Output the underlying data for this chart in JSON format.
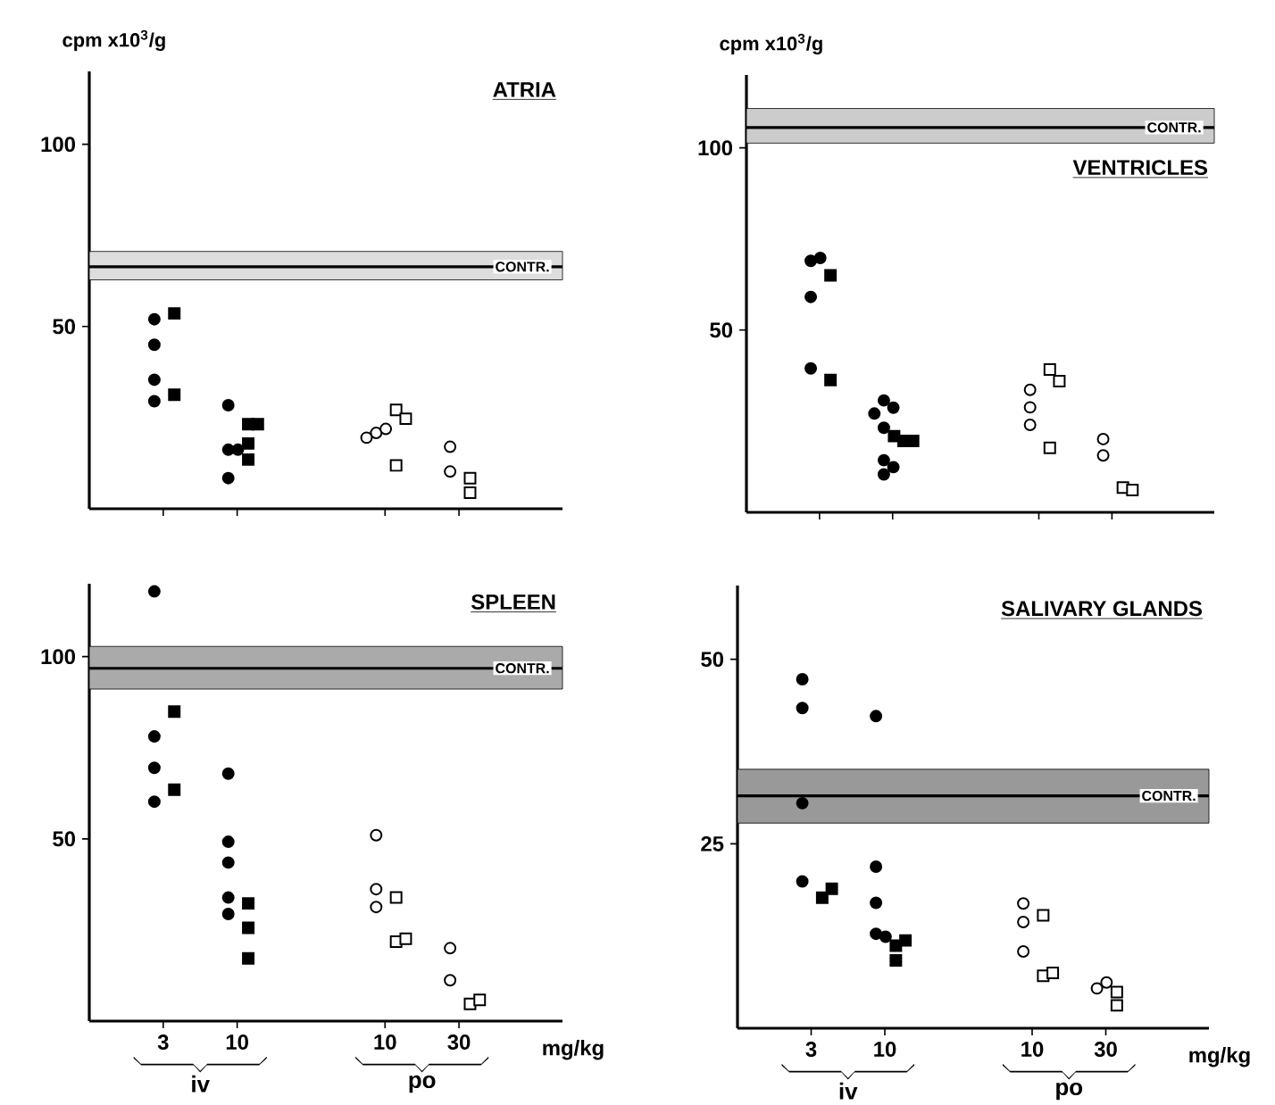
{
  "chart_data": [
    {
      "type": "scatter",
      "title": "ATRIA",
      "ylabel": "cpm x10$^{3}$/g",
      "categories": [
        "3",
        "10",
        null,
        "10",
        "30"
      ],
      "ylim": [
        0,
        120
      ],
      "yticks": [
        50,
        100
      ],
      "tick_labels": "y",
      "bands": [
        {
          "axis": "y",
          "from": 62.8,
          "to": 70.6,
          "color": "#dddddd"
        }
      ],
      "ref_lines": [
        {
          "axis": "y",
          "value": 66.4,
          "label": "CONTR."
        }
      ],
      "series": [
        {
          "marker": "circle",
          "color": "#000000",
          "values": [
            52,
            28.4,
            null,
            null,
            null
          ]
        },
        {
          "marker": "circle",
          "color": "#000000",
          "values": [
            45,
            16.2,
            null,
            null,
            null
          ]
        },
        {
          "marker": "circle",
          "color": "#000000",
          "values": [
            35.4,
            16.2,
            null,
            null,
            null
          ]
        },
        {
          "marker": "circle",
          "color": "#000000",
          "values": [
            29.5,
            8.4,
            null,
            null,
            null
          ]
        },
        {
          "marker": "square",
          "color": "#000000",
          "values": [
            53.6,
            23.2,
            null,
            null,
            null
          ]
        },
        {
          "marker": "square",
          "color": "#000000",
          "values": [
            31.3,
            23.2,
            null,
            null,
            null
          ]
        },
        {
          "marker": "square",
          "color": "#000000",
          "values": [
            null,
            17.9,
            null,
            null,
            null
          ]
        },
        {
          "marker": "square",
          "color": "#000000",
          "values": [
            null,
            13.5,
            null,
            null,
            null
          ]
        },
        {
          "marker": "circle",
          "color": "#ffffff",
          "values": [
            null,
            null,
            null,
            20.8,
            17.0
          ]
        },
        {
          "marker": "circle",
          "color": "#ffffff",
          "values": [
            null,
            null,
            null,
            21.9,
            10.2
          ]
        },
        {
          "marker": "circle",
          "color": "#ffffff",
          "values": [
            null,
            null,
            null,
            19.5,
            null
          ]
        },
        {
          "marker": "square",
          "color": "#ffffff",
          "values": [
            null,
            null,
            null,
            27.1,
            8.4
          ]
        },
        {
          "marker": "square",
          "color": "#ffffff",
          "values": [
            null,
            null,
            null,
            24.7,
            4.4
          ]
        },
        {
          "marker": "square",
          "color": "#ffffff",
          "values": [
            null,
            null,
            null,
            11.9,
            null
          ]
        }
      ]
    },
    {
      "type": "scatter",
      "title": "VENTRICLES",
      "ylabel": "cpm x10$^{3}$/g",
      "categories": [
        "3",
        "10",
        null,
        "10",
        "30"
      ],
      "ylim": [
        0,
        120
      ],
      "yticks": [
        50,
        100
      ],
      "tick_labels": "y",
      "bands": [
        {
          "axis": "y",
          "from": 101.3,
          "to": 110.8,
          "color": "#cccccc"
        }
      ],
      "ref_lines": [
        {
          "axis": "y",
          "value": 105.6,
          "label": "CONTR."
        }
      ],
      "series": [
        {
          "marker": "circle",
          "color": "#000000",
          "values": [
            69,
            30.7,
            null,
            null,
            null
          ]
        },
        {
          "marker": "circle",
          "color": "#000000",
          "values": [
            69.8,
            28.7,
            null,
            null,
            null
          ]
        },
        {
          "marker": "circle",
          "color": "#000000",
          "values": [
            59.1,
            27.1,
            null,
            null,
            null
          ]
        },
        {
          "marker": "circle",
          "color": "#000000",
          "values": [
            39.5,
            23.2,
            null,
            null,
            null
          ]
        },
        {
          "marker": "circle",
          "color": "#000000",
          "values": [
            null,
            14.3,
            null,
            null,
            null
          ]
        },
        {
          "marker": "circle",
          "color": "#000000",
          "values": [
            null,
            12.4,
            null,
            null,
            null
          ]
        },
        {
          "marker": "circle",
          "color": "#000000",
          "values": [
            null,
            10.4,
            null,
            null,
            null
          ]
        },
        {
          "marker": "square",
          "color": "#000000",
          "values": [
            65,
            19.6,
            null,
            null,
            null
          ]
        },
        {
          "marker": "square",
          "color": "#000000",
          "values": [
            36.3,
            19.6,
            null,
            null,
            null
          ]
        },
        {
          "marker": "square",
          "color": "#000000",
          "values": [
            null,
            20.9,
            null,
            null,
            null
          ]
        },
        {
          "marker": "circle",
          "color": "#ffffff",
          "values": [
            null,
            null,
            null,
            33.6,
            20.1
          ]
        },
        {
          "marker": "circle",
          "color": "#ffffff",
          "values": [
            null,
            null,
            null,
            28.8,
            15.6
          ]
        },
        {
          "marker": "circle",
          "color": "#ffffff",
          "values": [
            null,
            null,
            null,
            24.0,
            null
          ]
        },
        {
          "marker": "square",
          "color": "#ffffff",
          "values": [
            null,
            null,
            null,
            39.2,
            6.8
          ]
        },
        {
          "marker": "square",
          "color": "#ffffff",
          "values": [
            null,
            null,
            null,
            36.0,
            6.1
          ]
        },
        {
          "marker": "square",
          "color": "#ffffff",
          "values": [
            null,
            null,
            null,
            17.7,
            null
          ]
        }
      ]
    },
    {
      "type": "scatter",
      "title": "SPLEEN",
      "xlabel": "mg/kg",
      "annotations": [
        "iv",
        "po"
      ],
      "categories": [
        "3",
        "10",
        null,
        "10",
        "30"
      ],
      "ylim": [
        0,
        120
      ],
      "yticks": [
        50,
        100
      ],
      "bands": [
        {
          "axis": "y",
          "from": 91.1,
          "to": 102.8,
          "color": "#aaaaaa"
        }
      ],
      "ref_lines": [
        {
          "axis": "y",
          "value": 96.8,
          "label": "CONTR."
        }
      ],
      "series": [
        {
          "marker": "circle",
          "color": "#000000",
          "values": [
            117.9,
            67.9,
            null,
            null,
            null
          ]
        },
        {
          "marker": "circle",
          "color": "#000000",
          "values": [
            78.1,
            49.2,
            null,
            null,
            null
          ]
        },
        {
          "marker": "circle",
          "color": "#000000",
          "values": [
            69.5,
            43.5,
            null,
            null,
            null
          ]
        },
        {
          "marker": "circle",
          "color": "#000000",
          "values": [
            60.2,
            33.9,
            null,
            null,
            null
          ]
        },
        {
          "marker": "circle",
          "color": "#000000",
          "values": [
            null,
            29.4,
            null,
            null,
            null
          ]
        },
        {
          "marker": "square",
          "color": "#000000",
          "values": [
            84.9,
            32.3,
            null,
            null,
            null
          ]
        },
        {
          "marker": "square",
          "color": "#000000",
          "values": [
            63.5,
            25.6,
            null,
            null,
            null
          ]
        },
        {
          "marker": "square",
          "color": "#000000",
          "values": [
            null,
            17.2,
            null,
            null,
            null
          ]
        },
        {
          "marker": "circle",
          "color": "#ffffff",
          "values": [
            null,
            null,
            null,
            51,
            20
          ]
        },
        {
          "marker": "circle",
          "color": "#ffffff",
          "values": [
            null,
            null,
            null,
            36.2,
            11.2
          ]
        },
        {
          "marker": "circle",
          "color": "#ffffff",
          "values": [
            null,
            null,
            null,
            31.3,
            null
          ]
        },
        {
          "marker": "square",
          "color": "#ffffff",
          "values": [
            null,
            null,
            null,
            33.9,
            4.7
          ]
        },
        {
          "marker": "square",
          "color": "#ffffff",
          "values": [
            null,
            null,
            null,
            21.8,
            5.8
          ]
        },
        {
          "marker": "square",
          "color": "#ffffff",
          "values": [
            null,
            null,
            null,
            22.6,
            null
          ]
        }
      ]
    },
    {
      "type": "scatter",
      "title": "SALIVARY GLANDS",
      "xlabel": "mg/kg",
      "annotations": [
        "iv",
        "po"
      ],
      "categories": [
        "3",
        "10",
        null,
        "10",
        "30"
      ],
      "ylim": [
        0,
        60
      ],
      "yticks": [
        25,
        50
      ],
      "bands": [
        {
          "axis": "y",
          "from": 27.8,
          "to": 35.1,
          "color": "#999999"
        }
      ],
      "ref_lines": [
        {
          "axis": "y",
          "value": 31.5,
          "label": "CONTR."
        }
      ],
      "series": [
        {
          "marker": "circle",
          "color": "#000000",
          "values": [
            47.3,
            42.3,
            null,
            null,
            null
          ]
        },
        {
          "marker": "circle",
          "color": "#000000",
          "values": [
            43.4,
            21.9,
            null,
            null,
            null
          ]
        },
        {
          "marker": "circle",
          "color": "#000000",
          "values": [
            30.5,
            17.0,
            null,
            null,
            null
          ]
        },
        {
          "marker": "circle",
          "color": "#000000",
          "values": [
            19.9,
            12.8,
            null,
            null,
            null
          ]
        },
        {
          "marker": "circle",
          "color": "#000000",
          "values": [
            null,
            12.4,
            null,
            null,
            null
          ]
        },
        {
          "marker": "square",
          "color": "#000000",
          "values": [
            17.7,
            9.2,
            null,
            null,
            null
          ]
        },
        {
          "marker": "square",
          "color": "#000000",
          "values": [
            18.9,
            11.2,
            null,
            null,
            null
          ]
        },
        {
          "marker": "square",
          "color": "#000000",
          "values": [
            null,
            11.9,
            null,
            null,
            null
          ]
        },
        {
          "marker": "circle",
          "color": "#ffffff",
          "values": [
            null,
            null,
            null,
            16.9,
            5.4
          ]
        },
        {
          "marker": "circle",
          "color": "#ffffff",
          "values": [
            null,
            null,
            null,
            14.4,
            6.2
          ]
        },
        {
          "marker": "circle",
          "color": "#ffffff",
          "values": [
            null,
            null,
            null,
            10.4,
            null
          ]
        },
        {
          "marker": "square",
          "color": "#ffffff",
          "values": [
            null,
            null,
            null,
            15.3,
            4.9
          ]
        },
        {
          "marker": "square",
          "color": "#ffffff",
          "values": [
            null,
            null,
            null,
            7.1,
            3.1
          ]
        },
        {
          "marker": "square",
          "color": "#ffffff",
          "values": [
            null,
            null,
            null,
            7.5,
            null
          ]
        }
      ]
    }
  ]
}
